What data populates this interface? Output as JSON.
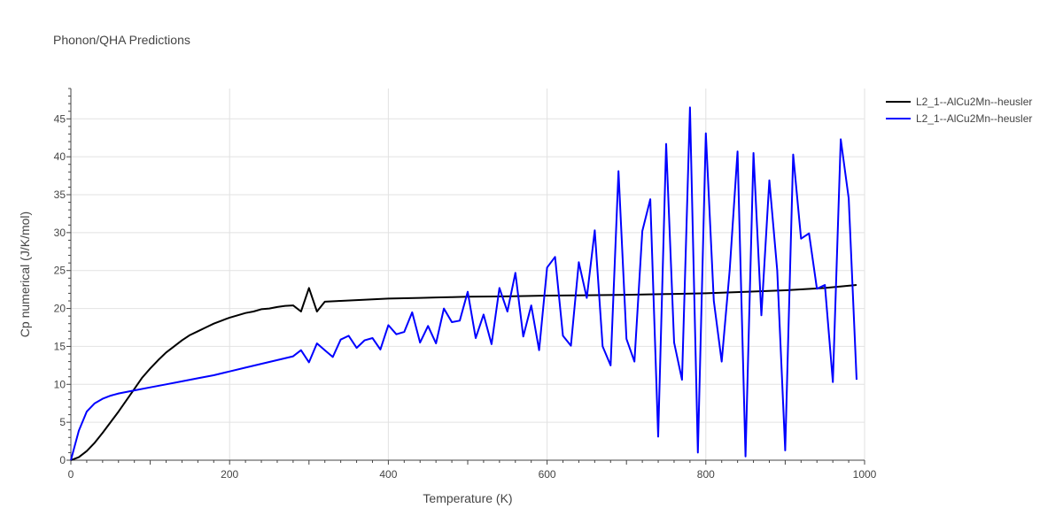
{
  "chart_data": {
    "type": "line",
    "title": "Phonon/QHA Predictions",
    "xlabel": "Temperature (K)",
    "ylabel": "Cp numerical (J/K/mol)",
    "xlim": [
      0,
      1000
    ],
    "ylim": [
      0,
      49
    ],
    "xticks": [
      0,
      200,
      400,
      600,
      800,
      1000
    ],
    "yticks": [
      0,
      5,
      10,
      15,
      20,
      25,
      30,
      35,
      40,
      45
    ],
    "grid": true,
    "legend": "top-right",
    "series": [
      {
        "name": "L2_1--AlCu2Mn--heusler",
        "color": "#000000",
        "x": [
          0,
          5,
          10,
          20,
          30,
          40,
          50,
          60,
          70,
          80,
          90,
          100,
          110,
          120,
          130,
          140,
          150,
          160,
          170,
          180,
          190,
          200,
          210,
          220,
          230,
          240,
          250,
          260,
          270,
          280,
          290,
          300,
          310,
          320,
          340,
          360,
          380,
          400,
          420,
          440,
          460,
          480,
          500,
          550,
          600,
          650,
          700,
          750,
          800,
          850,
          900,
          950,
          990
        ],
        "y": [
          0,
          0.2,
          0.4,
          1.2,
          2.3,
          3.6,
          5.0,
          6.4,
          7.9,
          9.4,
          10.9,
          12.1,
          13.2,
          14.2,
          15.0,
          15.8,
          16.5,
          17.0,
          17.5,
          18.0,
          18.4,
          18.8,
          19.1,
          19.4,
          19.6,
          19.9,
          20.0,
          20.2,
          20.35,
          20.4,
          19.6,
          22.7,
          19.6,
          20.9,
          21.0,
          21.1,
          21.2,
          21.3,
          21.35,
          21.4,
          21.45,
          21.5,
          21.55,
          21.6,
          21.7,
          21.75,
          21.8,
          21.9,
          22.0,
          22.2,
          22.4,
          22.7,
          23.1
        ]
      },
      {
        "name": "L2_1--AlCu2Mn--heusler",
        "color": "#0000ff",
        "x": [
          0,
          10,
          20,
          30,
          40,
          50,
          60,
          70,
          80,
          100,
          120,
          140,
          160,
          180,
          200,
          220,
          240,
          260,
          280,
          290,
          300,
          310,
          320,
          330,
          340,
          350,
          360,
          370,
          380,
          390,
          400,
          410,
          420,
          430,
          440,
          450,
          460,
          470,
          480,
          490,
          500,
          510,
          520,
          530,
          540,
          550,
          560,
          570,
          580,
          590,
          600,
          610,
          620,
          630,
          640,
          650,
          660,
          670,
          680,
          690,
          700,
          710,
          720,
          730,
          740,
          750,
          760,
          770,
          780,
          790,
          800,
          810,
          820,
          830,
          840,
          850,
          860,
          870,
          880,
          890,
          900,
          910,
          920,
          930,
          940,
          950,
          960,
          970,
          980,
          990
        ],
        "y": [
          0,
          3.9,
          6.4,
          7.5,
          8.1,
          8.5,
          8.8,
          9.0,
          9.2,
          9.6,
          10.0,
          10.4,
          10.8,
          11.2,
          11.7,
          12.2,
          12.7,
          13.2,
          13.7,
          14.5,
          12.9,
          15.4,
          14.5,
          13.6,
          15.9,
          16.4,
          14.8,
          15.8,
          16.1,
          14.6,
          17.8,
          16.6,
          16.9,
          19.5,
          15.5,
          17.7,
          15.4,
          20.0,
          18.2,
          18.4,
          22.2,
          16.1,
          19.2,
          15.3,
          22.7,
          19.6,
          24.7,
          16.3,
          20.4,
          14.5,
          25.4,
          26.8,
          16.4,
          15.1,
          26.1,
          21.4,
          30.3,
          15.0,
          12.5,
          38.1,
          16.0,
          13.0,
          30.2,
          34.4,
          3.1,
          41.7,
          15.5,
          10.6,
          46.5,
          1.0,
          43.1,
          21.0,
          13.0,
          25.0,
          40.7,
          0.5,
          40.5,
          19.1,
          36.9,
          25.0,
          1.3,
          40.3,
          29.2,
          29.9,
          22.6,
          23.1,
          10.3,
          42.3,
          34.5,
          10.6
        ]
      }
    ]
  }
}
